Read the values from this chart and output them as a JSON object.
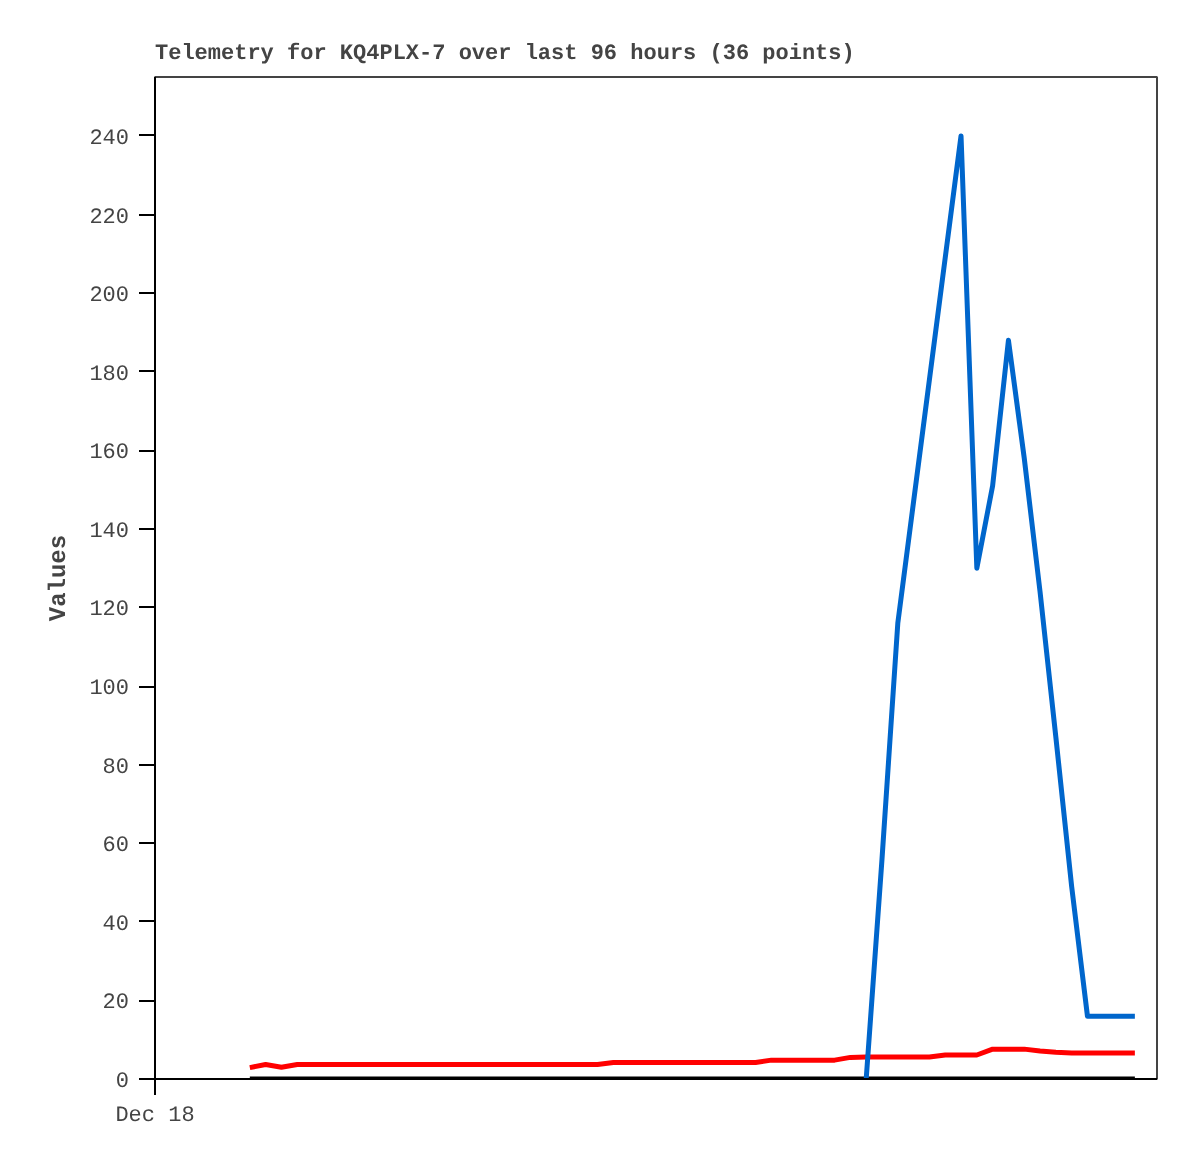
{
  "chart_data": {
    "type": "line",
    "title": "Telemetry for KQ4PLX-7 over last 96 hours (36 points)",
    "ylabel": "Values",
    "categories": [
      "Dec 18",
      null,
      null,
      null,
      null,
      null,
      null,
      null,
      null,
      null,
      null,
      null,
      null,
      null,
      null,
      null,
      null,
      null,
      null,
      null,
      null,
      null,
      null,
      null,
      null,
      null,
      null,
      null,
      null,
      null,
      null,
      null,
      null,
      null,
      null,
      null,
      null,
      null,
      null,
      null,
      null,
      null,
      null,
      null,
      null,
      null,
      null,
      null,
      null,
      null,
      null,
      null,
      null,
      null,
      null,
      null,
      null,
      null,
      null,
      null,
      null,
      null,
      null
    ],
    "ylim": [
      0,
      255
    ],
    "yticks": [
      0,
      20,
      40,
      60,
      80,
      100,
      120,
      140,
      160,
      180,
      200,
      220,
      240
    ],
    "grid": false,
    "marker": "none",
    "line_style": "solid",
    "series": [
      {
        "color": "#ff0000",
        "values": [
          null,
          null,
          null,
          null,
          null,
          null,
          2.9,
          3.7,
          3.0,
          3.7,
          3.7,
          3.7,
          3.7,
          3.7,
          3.7,
          3.7,
          3.7,
          3.7,
          3.7,
          3.7,
          3.7,
          3.7,
          3.7,
          3.7,
          3.7,
          3.7,
          3.7,
          3.7,
          3.7,
          4.2,
          4.2,
          4.2,
          4.2,
          4.2,
          4.2,
          4.2,
          4.2,
          4.2,
          4.2,
          4.8,
          4.8,
          4.8,
          4.8,
          4.8,
          5.5,
          5.6,
          5.6,
          5.6,
          5.6,
          5.6,
          6.1,
          6.1,
          6.1,
          7.6,
          7.6,
          7.6,
          7.1,
          6.8,
          6.6,
          6.6,
          6.6,
          6.6,
          6.6
        ]
      },
      {
        "color": "#000000",
        "values": [
          null,
          null,
          null,
          null,
          null,
          null,
          0,
          0,
          0,
          0,
          0,
          0,
          0,
          0,
          0,
          0,
          0,
          0,
          0,
          0,
          0,
          0,
          0,
          0,
          0,
          0,
          0,
          0,
          0,
          0,
          0,
          0,
          0,
          0,
          0,
          0,
          0,
          0,
          0,
          0,
          0,
          0,
          0,
          0,
          0,
          0,
          0,
          0,
          0,
          0,
          0,
          0,
          0,
          0,
          0,
          0,
          0,
          0,
          0,
          0,
          0,
          0,
          0
        ]
      },
      {
        "color": "#0066cc",
        "values": [
          null,
          null,
          null,
          null,
          null,
          null,
          null,
          null,
          null,
          null,
          null,
          null,
          null,
          null,
          null,
          null,
          null,
          null,
          null,
          null,
          null,
          null,
          null,
          null,
          null,
          null,
          null,
          null,
          null,
          null,
          null,
          null,
          null,
          null,
          null,
          null,
          null,
          null,
          null,
          null,
          null,
          null,
          null,
          null,
          null,
          0,
          56,
          116,
          147,
          178,
          209,
          240,
          130,
          151,
          188,
          158,
          124,
          87,
          49,
          16,
          16,
          16,
          16
        ]
      }
    ]
  }
}
